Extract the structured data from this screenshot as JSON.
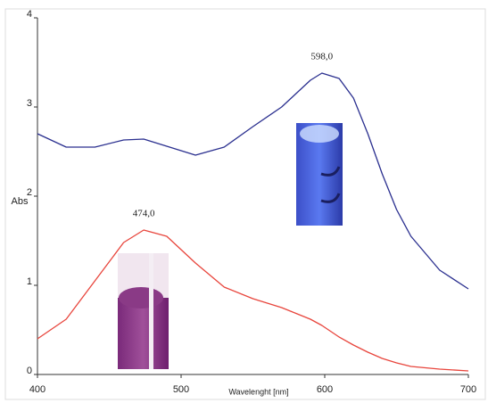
{
  "chart_data": {
    "type": "line",
    "xlabel": "Wavelenght [nm]",
    "ylabel": "Abs",
    "x": [
      400,
      420,
      440,
      460,
      474,
      490,
      510,
      530,
      550,
      570,
      590,
      598,
      610,
      620,
      630,
      640,
      650,
      660,
      680,
      700
    ],
    "series": [
      {
        "name": "blue",
        "color": "#2a2f8f",
        "values": [
          2.7,
          2.55,
          2.55,
          2.63,
          2.64,
          2.56,
          2.46,
          2.55,
          2.78,
          3.0,
          3.3,
          3.38,
          3.32,
          3.1,
          2.7,
          2.25,
          1.85,
          1.55,
          1.17,
          0.96
        ]
      },
      {
        "name": "red",
        "color": "#e8453c",
        "values": [
          0.4,
          0.62,
          1.05,
          1.48,
          1.62,
          1.55,
          1.25,
          0.98,
          0.85,
          0.75,
          0.62,
          0.55,
          0.42,
          0.33,
          0.25,
          0.18,
          0.13,
          0.09,
          0.06,
          0.04
        ]
      }
    ],
    "annotations": [
      {
        "text": "598,0",
        "x": 598,
        "y": 3.38
      },
      {
        "text": "474,0",
        "x": 474,
        "y": 1.62
      }
    ],
    "xlim": [
      400,
      700
    ],
    "ylim": [
      0,
      4
    ],
    "xticks": [
      400,
      500,
      600,
      700
    ],
    "yticks": [
      0,
      1,
      2,
      3,
      4
    ]
  }
}
